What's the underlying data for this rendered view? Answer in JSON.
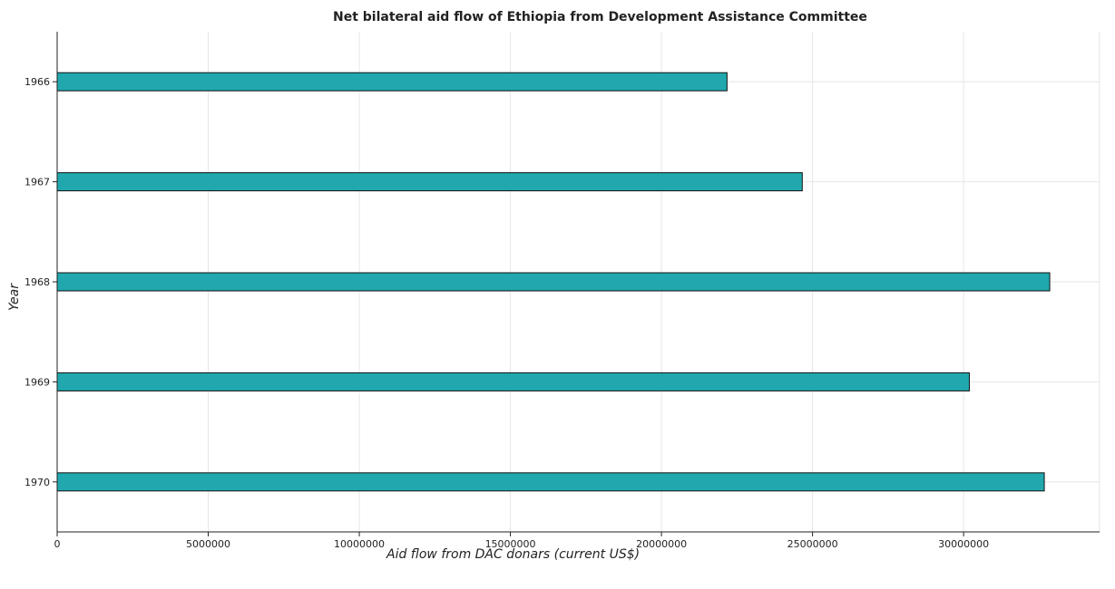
{
  "chart_data": {
    "type": "bar",
    "orientation": "horizontal",
    "title": "Net bilateral aid flow of Ethiopia from Development Assistance Committee",
    "xlabel": "Aid flow from DAC donars (current US$)",
    "ylabel": "Year",
    "categories": [
      "1966",
      "1967",
      "1968",
      "1969",
      "1970"
    ],
    "values": [
      22170000,
      24660000,
      32850000,
      30190000,
      32670000
    ],
    "xlim": [
      0,
      34500000
    ],
    "xticks": [
      0,
      5000000,
      10000000,
      15000000,
      20000000,
      25000000,
      30000000
    ],
    "xtick_labels": [
      "0",
      "5000000",
      "10000000",
      "15000000",
      "20000000",
      "25000000",
      "30000000"
    ],
    "grid": true,
    "bar_color": "#20a8ae",
    "bar_stroke": "#111111"
  }
}
